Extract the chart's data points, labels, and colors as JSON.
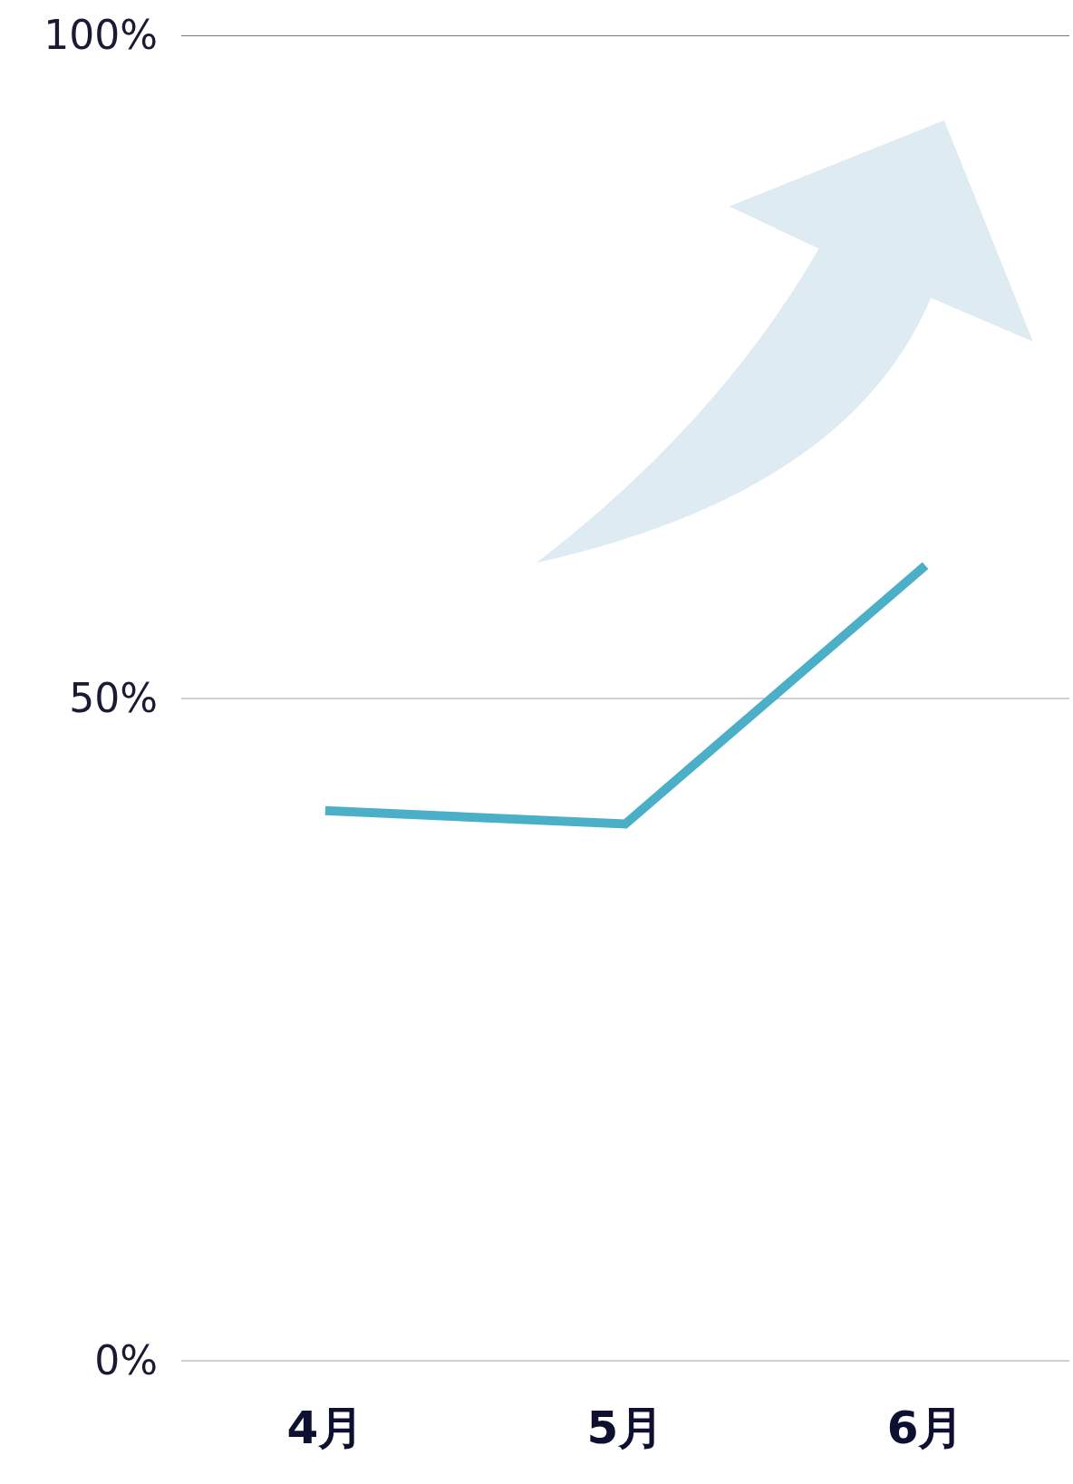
{
  "chart_data": {
    "type": "line",
    "categories": [
      "4月",
      "5月",
      "6月"
    ],
    "series": [
      {
        "color": "#4bafc8",
        "values": [
          41.5,
          40.5,
          60
        ]
      }
    ],
    "ylim": [
      0,
      100
    ],
    "yticks": [
      {
        "value": 0,
        "label": "0%"
      },
      {
        "value": 50,
        "label": "50%"
      },
      {
        "value": 100,
        "label": "100%"
      }
    ],
    "grid": "y",
    "marker": "none",
    "line_style": "solid"
  }
}
